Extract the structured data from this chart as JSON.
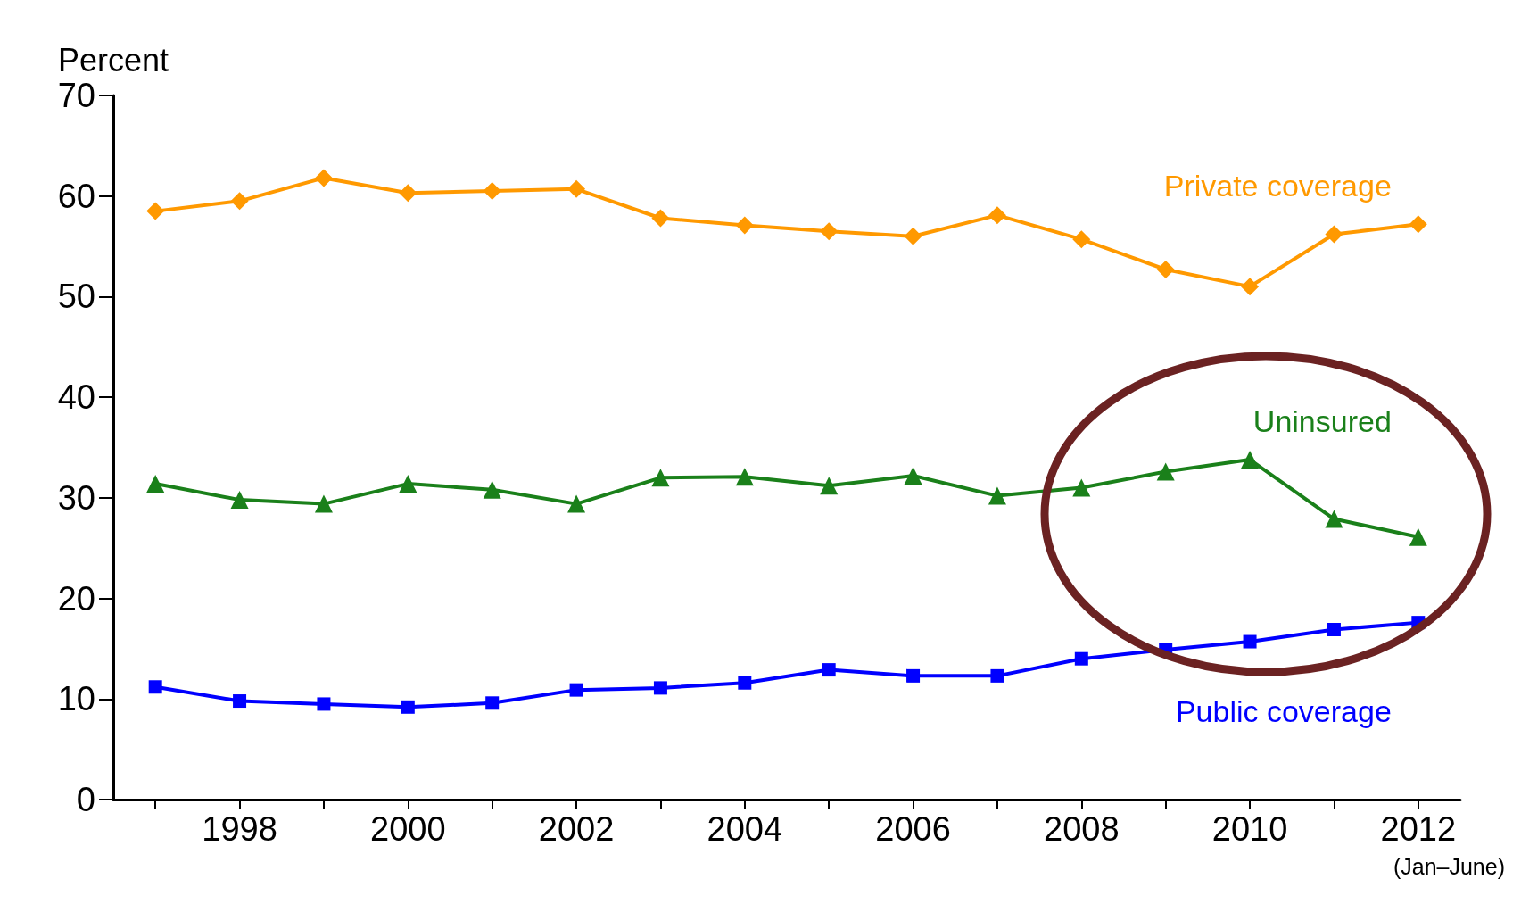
{
  "chart_data": {
    "type": "line",
    "ylabel": "Percent",
    "x": [
      1997,
      1998,
      1999,
      2000,
      2001,
      2002,
      2003,
      2004,
      2005,
      2006,
      2007,
      2008,
      2009,
      2010,
      2011,
      2012
    ],
    "series": [
      {
        "name": "Private coverage",
        "color": "#ff9900",
        "marker": "diamond",
        "values": [
          58.5,
          59.5,
          61.8,
          60.3,
          60.5,
          60.7,
          57.8,
          57.1,
          56.5,
          56.0,
          58.1,
          55.7,
          52.7,
          51.0,
          56.2,
          57.2
        ]
      },
      {
        "name": "Uninsured",
        "color": "#1a801a",
        "marker": "triangle",
        "values": [
          31.4,
          29.8,
          29.4,
          31.4,
          30.8,
          29.4,
          32.0,
          32.1,
          31.2,
          32.2,
          30.2,
          31.0,
          32.6,
          33.8,
          27.9,
          26.1
        ]
      },
      {
        "name": "Public coverage",
        "color": "#0000ff",
        "marker": "square",
        "values": [
          11.2,
          9.8,
          9.5,
          9.2,
          9.6,
          10.9,
          11.1,
          11.6,
          12.9,
          12.3,
          12.3,
          14.0,
          14.9,
          15.7,
          16.9,
          17.6
        ]
      }
    ],
    "xlim": [
      1996.5,
      2012.5
    ],
    "xticks": [
      {
        "value": 1997,
        "label": null
      },
      1998,
      {
        "value": 1999,
        "label": null
      },
      2000,
      {
        "value": 2001,
        "label": null
      },
      2002,
      {
        "value": 2003,
        "label": null
      },
      2004,
      {
        "value": 2005,
        "label": null
      },
      2006,
      {
        "value": 2007,
        "label": null
      },
      2008,
      {
        "value": 2009,
        "label": null
      },
      2010,
      {
        "value": 2011,
        "label": null
      },
      2012
    ],
    "ylim": [
      0,
      70
    ],
    "yticks": [
      0,
      10,
      20,
      30,
      40,
      50,
      60,
      70
    ],
    "annotations": [
      "(Jan–June)"
    ],
    "grid": false,
    "legend": false,
    "line_style": "solid"
  }
}
